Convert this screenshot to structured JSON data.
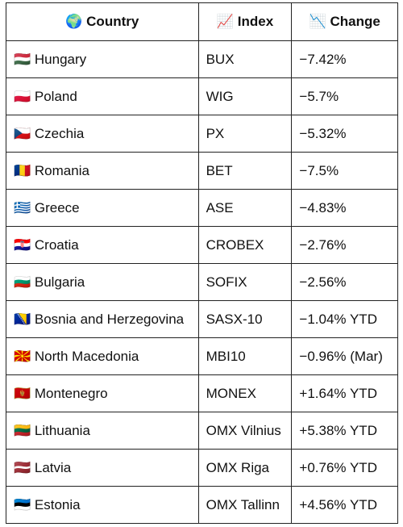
{
  "table": {
    "header": [
      "🌍 Country",
      "📈 Index",
      "📉 Change"
    ],
    "rows": [
      [
        "🇭🇺 Hungary",
        "BUX",
        "−7.42%"
      ],
      [
        "🇵🇱 Poland",
        "WIG",
        "−5.7%"
      ],
      [
        "🇨🇿 Czechia",
        "PX",
        "−5.32%"
      ],
      [
        "🇷🇴 Romania",
        "BET",
        "−7.5%"
      ],
      [
        "🇬🇷 Greece",
        "ASE",
        "−4.83%"
      ],
      [
        "🇭🇷 Croatia",
        "CROBEX",
        "−2.76%"
      ],
      [
        "🇧🇬 Bulgaria",
        "SOFIX",
        "−2.56%"
      ],
      [
        "🇧🇦 Bosnia and Herzegovina",
        "SASX-10",
        "−1.04% YTD"
      ],
      [
        "🇲🇰 North Macedonia",
        "MBI10",
        "−0.96% (Mar)"
      ],
      [
        "🇲🇪 Montenegro",
        "MONEX",
        "+1.64% YTD"
      ],
      [
        "🇱🇹 Lithuania",
        "OMX Vilnius",
        "+5.38% YTD"
      ],
      [
        "🇱🇻 Latvia",
        "OMX Riga",
        "+0.76% YTD"
      ],
      [
        "🇪🇪 Estonia",
        "OMX Tallinn",
        "+4.56% YTD"
      ]
    ]
  }
}
